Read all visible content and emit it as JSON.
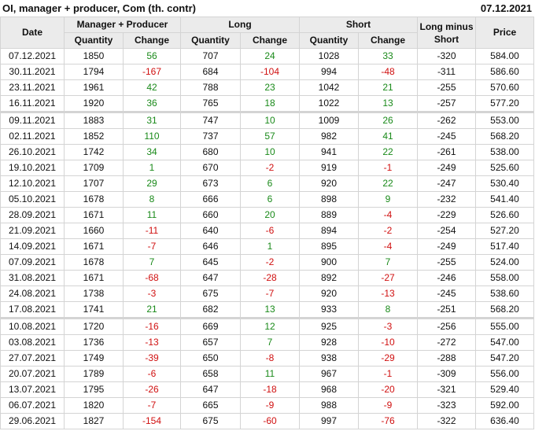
{
  "title": "OI, manager + producer, Com (th. contr)",
  "date": "07.12.2021",
  "colors": {
    "positive": "#1a8a1a",
    "negative": "#d01010",
    "header_bg": "#ebebeb"
  },
  "headers": {
    "date": "Date",
    "group_manager": "Manager + Producer",
    "group_long": "Long",
    "group_short": "Short",
    "long_minus_short": "Long minus Short",
    "price": "Price",
    "quantity": "Quantity",
    "change": "Change"
  },
  "rows": [
    [
      "07.12.2021",
      "1850",
      "56",
      "707",
      "24",
      "1028",
      "33",
      "-320",
      "584.00"
    ],
    [
      "30.11.2021",
      "1794",
      "-167",
      "684",
      "-104",
      "994",
      "-48",
      "-311",
      "586.60"
    ],
    [
      "23.11.2021",
      "1961",
      "42",
      "788",
      "23",
      "1042",
      "21",
      "-255",
      "570.60"
    ],
    [
      "16.11.2021",
      "1920",
      "36",
      "765",
      "18",
      "1022",
      "13",
      "-257",
      "577.20"
    ],
    [
      "09.11.2021",
      "1883",
      "31",
      "747",
      "10",
      "1009",
      "26",
      "-262",
      "553.00"
    ],
    [
      "02.11.2021",
      "1852",
      "110",
      "737",
      "57",
      "982",
      "41",
      "-245",
      "568.20"
    ],
    [
      "26.10.2021",
      "1742",
      "34",
      "680",
      "10",
      "941",
      "22",
      "-261",
      "538.00"
    ],
    [
      "19.10.2021",
      "1709",
      "1",
      "670",
      "-2",
      "919",
      "-1",
      "-249",
      "525.60"
    ],
    [
      "12.10.2021",
      "1707",
      "29",
      "673",
      "6",
      "920",
      "22",
      "-247",
      "530.40"
    ],
    [
      "05.10.2021",
      "1678",
      "8",
      "666",
      "6",
      "898",
      "9",
      "-232",
      "541.40"
    ],
    [
      "28.09.2021",
      "1671",
      "11",
      "660",
      "20",
      "889",
      "-4",
      "-229",
      "526.60"
    ],
    [
      "21.09.2021",
      "1660",
      "-11",
      "640",
      "-6",
      "894",
      "-2",
      "-254",
      "527.20"
    ],
    [
      "14.09.2021",
      "1671",
      "-7",
      "646",
      "1",
      "895",
      "-4",
      "-249",
      "517.40"
    ],
    [
      "07.09.2021",
      "1678",
      "7",
      "645",
      "-2",
      "900",
      "7",
      "-255",
      "524.00"
    ],
    [
      "31.08.2021",
      "1671",
      "-68",
      "647",
      "-28",
      "892",
      "-27",
      "-246",
      "558.00"
    ],
    [
      "24.08.2021",
      "1738",
      "-3",
      "675",
      "-7",
      "920",
      "-13",
      "-245",
      "538.60"
    ],
    [
      "17.08.2021",
      "1741",
      "21",
      "682",
      "13",
      "933",
      "8",
      "-251",
      "568.20"
    ],
    [
      "10.08.2021",
      "1720",
      "-16",
      "669",
      "12",
      "925",
      "-3",
      "-256",
      "555.00"
    ],
    [
      "03.08.2021",
      "1736",
      "-13",
      "657",
      "7",
      "928",
      "-10",
      "-272",
      "547.00"
    ],
    [
      "27.07.2021",
      "1749",
      "-39",
      "650",
      "-8",
      "938",
      "-29",
      "-288",
      "547.20"
    ],
    [
      "20.07.2021",
      "1789",
      "-6",
      "658",
      "11",
      "967",
      "-1",
      "-309",
      "556.00"
    ],
    [
      "13.07.2021",
      "1795",
      "-26",
      "647",
      "-18",
      "968",
      "-20",
      "-321",
      "529.40"
    ],
    [
      "06.07.2021",
      "1820",
      "-7",
      "665",
      "-9",
      "988",
      "-9",
      "-323",
      "592.00"
    ],
    [
      "29.06.2021",
      "1827",
      "-154",
      "675",
      "-60",
      "997",
      "-76",
      "-322",
      "636.40"
    ]
  ]
}
